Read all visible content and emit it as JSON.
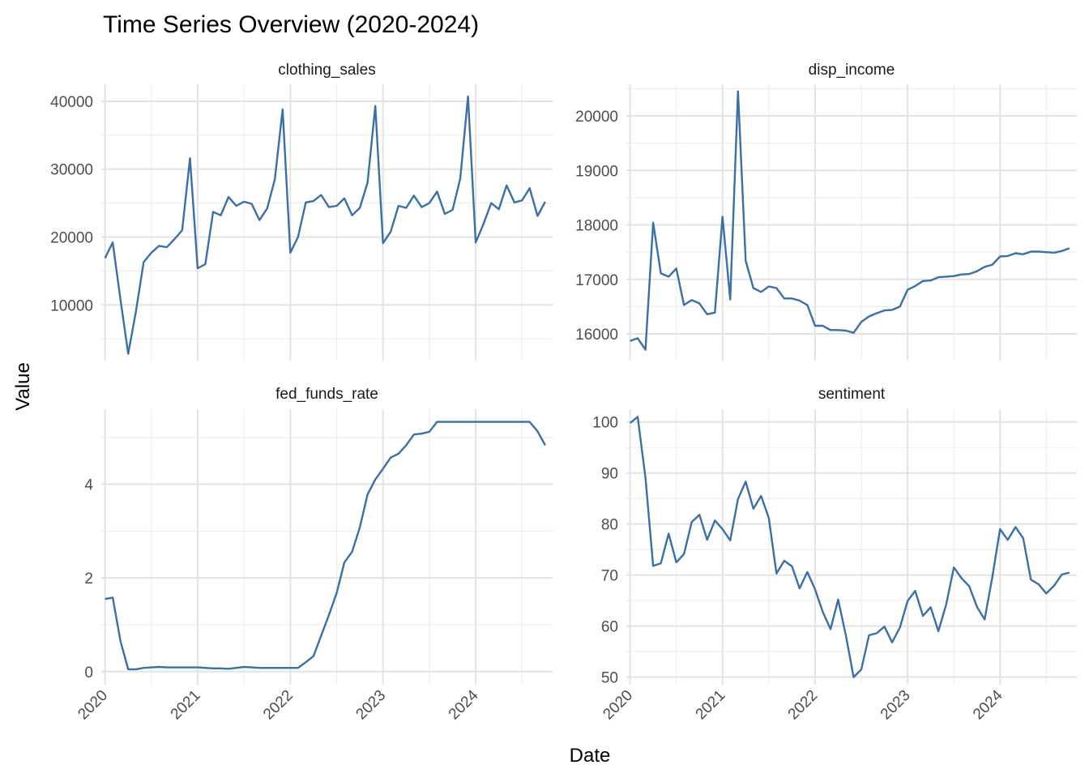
{
  "chart_data": {
    "type": "line",
    "title": "Time Series Overview (2020-2024)",
    "xlabel": "Date",
    "ylabel": "Value",
    "line_color": "#3a6fa8",
    "grid": true,
    "x_ticks": [
      "2020",
      "2021",
      "2022",
      "2023",
      "2024"
    ],
    "x_range": [
      2019.96,
      2024.83
    ],
    "panels": [
      {
        "name": "clothing_sales",
        "ylim": [
          1800,
          42500
        ],
        "y_ticks": [
          10000,
          20000,
          30000,
          40000
        ],
        "x": [
          2020.0,
          2020.083,
          2020.167,
          2020.25,
          2020.333,
          2020.417,
          2020.5,
          2020.583,
          2020.667,
          2020.75,
          2020.833,
          2020.917,
          2021.0,
          2021.083,
          2021.167,
          2021.25,
          2021.333,
          2021.417,
          2021.5,
          2021.583,
          2021.667,
          2021.75,
          2021.833,
          2021.917,
          2022.0,
          2022.083,
          2022.167,
          2022.25,
          2022.333,
          2022.417,
          2022.5,
          2022.583,
          2022.667,
          2022.75,
          2022.833,
          2022.917,
          2023.0,
          2023.083,
          2023.167,
          2023.25,
          2023.333,
          2023.417,
          2023.5,
          2023.583,
          2023.667,
          2023.75,
          2023.833,
          2023.917,
          2024.0,
          2024.083,
          2024.167,
          2024.25,
          2024.333,
          2024.417,
          2024.5,
          2024.583,
          2024.667,
          2024.75
        ],
        "values": [
          16900,
          19200,
          10800,
          2800,
          9000,
          16300,
          17700,
          18700,
          18500,
          19700,
          21000,
          31600,
          15400,
          16000,
          23700,
          23200,
          25900,
          24600,
          25200,
          24900,
          22500,
          24200,
          28500,
          38800,
          17700,
          20000,
          25100,
          25300,
          26200,
          24400,
          24600,
          25700,
          23200,
          24300,
          28000,
          39300,
          19100,
          20800,
          24600,
          24300,
          26100,
          24400,
          25000,
          26700,
          23400,
          24000,
          28600,
          40700,
          19200,
          21900,
          25000,
          24100,
          27600,
          25100,
          25400,
          27200,
          23100,
          25200
        ]
      },
      {
        "name": "disp_income",
        "ylim": [
          15510,
          20580
        ],
        "y_ticks": [
          16000,
          17000,
          18000,
          19000,
          20000
        ],
        "x": [
          2020.0,
          2020.083,
          2020.167,
          2020.25,
          2020.333,
          2020.417,
          2020.5,
          2020.583,
          2020.667,
          2020.75,
          2020.833,
          2020.917,
          2021.0,
          2021.083,
          2021.167,
          2021.25,
          2021.333,
          2021.417,
          2021.5,
          2021.583,
          2021.667,
          2021.75,
          2021.833,
          2021.917,
          2022.0,
          2022.083,
          2022.167,
          2022.25,
          2022.333,
          2022.417,
          2022.5,
          2022.583,
          2022.667,
          2022.75,
          2022.833,
          2022.917,
          2023.0,
          2023.083,
          2023.167,
          2023.25,
          2023.333,
          2023.417,
          2023.5,
          2023.583,
          2023.667,
          2023.75,
          2023.833,
          2023.917,
          2024.0,
          2024.083,
          2024.167,
          2024.25,
          2024.333,
          2024.417,
          2024.5,
          2024.583,
          2024.667,
          2024.75
        ],
        "values": [
          15870,
          15920,
          15710,
          18040,
          17110,
          17050,
          17200,
          16530,
          16620,
          16560,
          16360,
          16390,
          18150,
          16630,
          20450,
          17340,
          16840,
          16770,
          16870,
          16840,
          16650,
          16650,
          16610,
          16530,
          16150,
          16150,
          16070,
          16070,
          16060,
          16020,
          16220,
          16320,
          16380,
          16430,
          16440,
          16500,
          16810,
          16880,
          16970,
          16980,
          17040,
          17050,
          17060,
          17090,
          17100,
          17150,
          17230,
          17270,
          17420,
          17430,
          17480,
          17460,
          17510,
          17510,
          17500,
          17490,
          17520,
          17570
        ]
      },
      {
        "name": "fed_funds_rate",
        "ylim": [
          -0.28,
          5.6
        ],
        "y_ticks": [
          0,
          2,
          4
        ],
        "x": [
          2020.0,
          2020.083,
          2020.167,
          2020.25,
          2020.333,
          2020.417,
          2020.5,
          2020.583,
          2020.667,
          2020.75,
          2020.833,
          2020.917,
          2021.0,
          2021.083,
          2021.167,
          2021.25,
          2021.333,
          2021.417,
          2021.5,
          2021.583,
          2021.667,
          2021.75,
          2021.833,
          2021.917,
          2022.0,
          2022.083,
          2022.167,
          2022.25,
          2022.333,
          2022.417,
          2022.5,
          2022.583,
          2022.667,
          2022.75,
          2022.833,
          2022.917,
          2023.0,
          2023.083,
          2023.167,
          2023.25,
          2023.333,
          2023.417,
          2023.5,
          2023.583,
          2023.667,
          2023.75,
          2023.833,
          2023.917,
          2024.0,
          2024.083,
          2024.167,
          2024.25,
          2024.333,
          2024.417,
          2024.5,
          2024.583,
          2024.667,
          2024.75
        ],
        "values": [
          1.55,
          1.58,
          0.65,
          0.05,
          0.05,
          0.08,
          0.09,
          0.1,
          0.09,
          0.09,
          0.09,
          0.09,
          0.09,
          0.08,
          0.07,
          0.07,
          0.06,
          0.08,
          0.1,
          0.09,
          0.08,
          0.08,
          0.08,
          0.08,
          0.08,
          0.08,
          0.2,
          0.33,
          0.77,
          1.21,
          1.68,
          2.33,
          2.56,
          3.08,
          3.78,
          4.1,
          4.33,
          4.57,
          4.65,
          4.83,
          5.06,
          5.08,
          5.12,
          5.33,
          5.33,
          5.33,
          5.33,
          5.33,
          5.33,
          5.33,
          5.33,
          5.33,
          5.33,
          5.33,
          5.33,
          5.33,
          5.13,
          4.83
        ]
      },
      {
        "name": "sentiment",
        "ylim": [
          48.5,
          102.5
        ],
        "y_ticks": [
          50,
          60,
          70,
          80,
          90,
          100
        ],
        "x": [
          2020.0,
          2020.083,
          2020.167,
          2020.25,
          2020.333,
          2020.417,
          2020.5,
          2020.583,
          2020.667,
          2020.75,
          2020.833,
          2020.917,
          2021.0,
          2021.083,
          2021.167,
          2021.25,
          2021.333,
          2021.417,
          2021.5,
          2021.583,
          2021.667,
          2021.75,
          2021.833,
          2021.917,
          2022.0,
          2022.083,
          2022.167,
          2022.25,
          2022.333,
          2022.417,
          2022.5,
          2022.583,
          2022.667,
          2022.75,
          2022.833,
          2022.917,
          2023.0,
          2023.083,
          2023.167,
          2023.25,
          2023.333,
          2023.417,
          2023.5,
          2023.583,
          2023.667,
          2023.75,
          2023.833,
          2023.917,
          2024.0,
          2024.083,
          2024.167,
          2024.25,
          2024.333,
          2024.417,
          2024.5,
          2024.583,
          2024.667,
          2024.75
        ],
        "values": [
          99.8,
          101.0,
          89.1,
          71.8,
          72.3,
          78.1,
          72.5,
          74.1,
          80.4,
          81.8,
          76.9,
          80.7,
          79.0,
          76.8,
          84.9,
          88.3,
          83.0,
          85.5,
          81.2,
          70.3,
          72.8,
          71.7,
          67.4,
          70.6,
          67.2,
          62.8,
          59.4,
          65.2,
          58.2,
          50.0,
          51.5,
          58.2,
          58.6,
          59.9,
          56.8,
          59.7,
          64.9,
          66.9,
          62.0,
          63.7,
          59.0,
          64.2,
          71.5,
          69.4,
          67.8,
          63.8,
          61.3,
          69.7,
          79.0,
          76.9,
          79.4,
          77.2,
          69.1,
          68.2,
          66.4,
          67.9,
          70.1,
          70.5
        ]
      }
    ]
  }
}
